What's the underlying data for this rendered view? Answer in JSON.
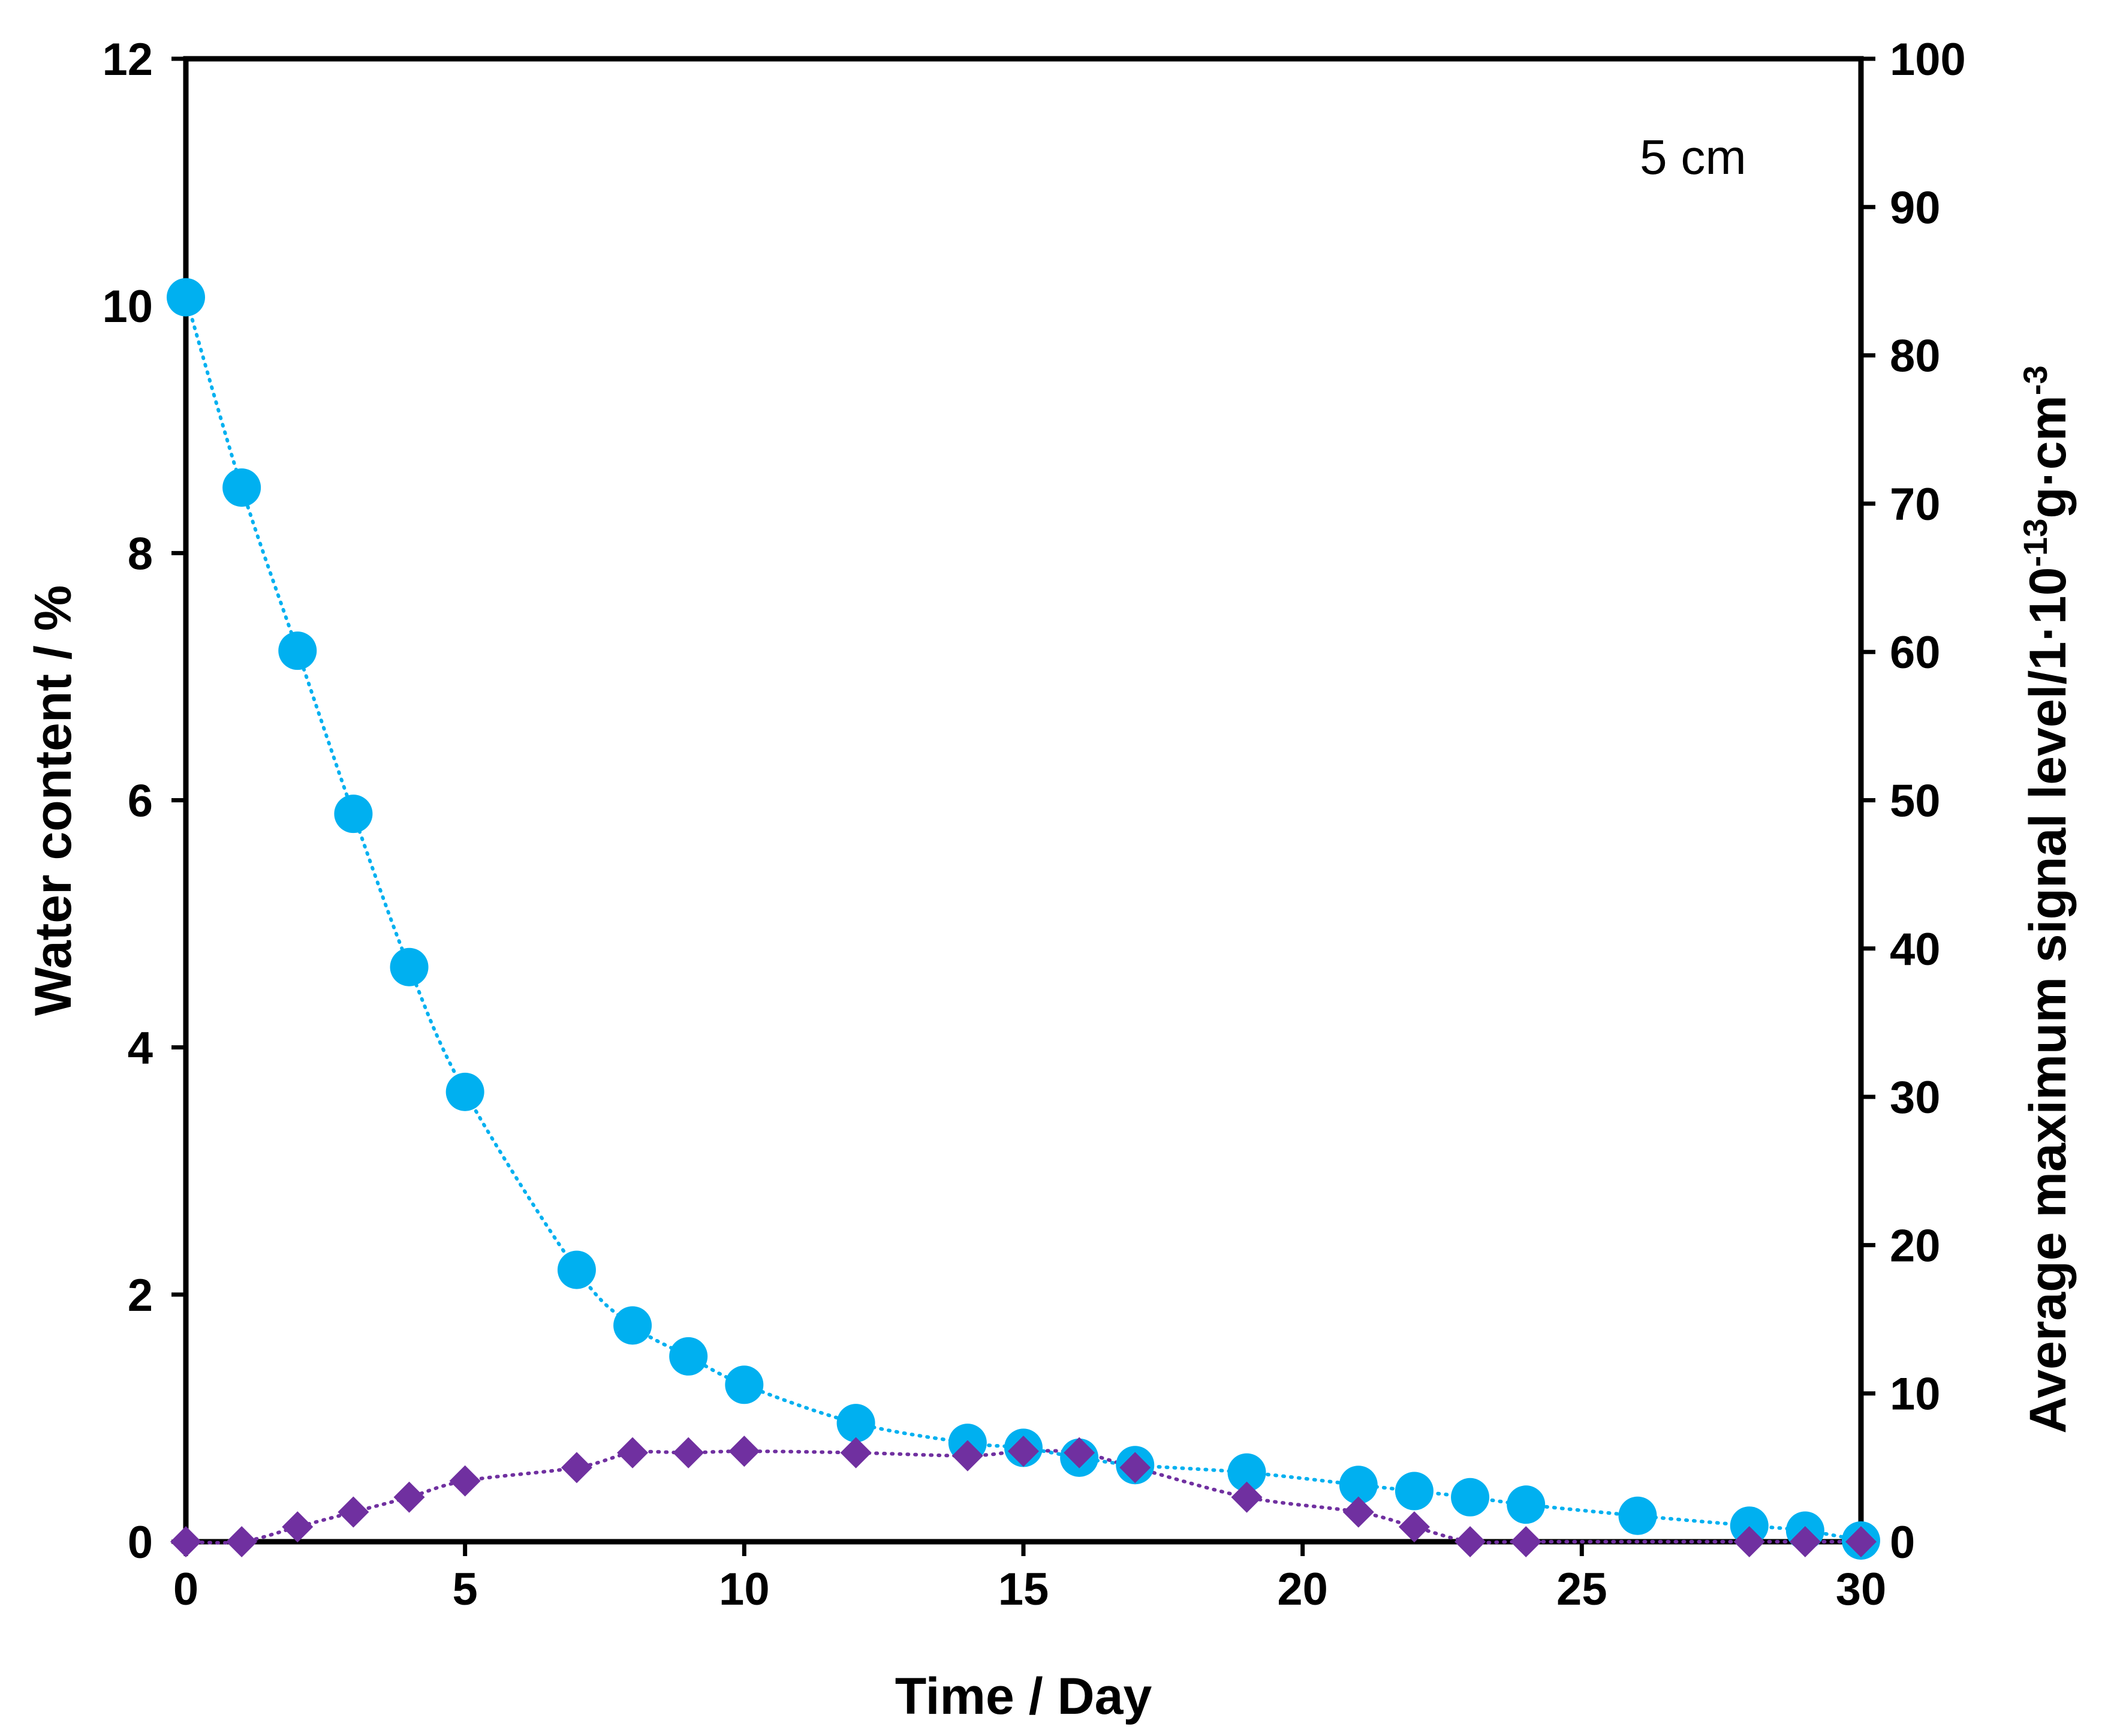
{
  "chart_data": {
    "type": "scatter",
    "annotation": "5 cm",
    "xlabel": "Time / Day",
    "ylabel": "Water content / %",
    "y2label": {
      "main": "Average maximum signal level/1·10",
      "exp": "-13",
      "unit": "g·cm",
      "unit_exp": "-3"
    },
    "xlim": [
      0,
      30
    ],
    "ylim": [
      0,
      12
    ],
    "y2lim": [
      0,
      100
    ],
    "xticks": [
      0,
      5,
      10,
      15,
      20,
      25,
      30
    ],
    "yticks": [
      0,
      2,
      4,
      6,
      8,
      10,
      12
    ],
    "y2ticks": [
      0,
      10,
      20,
      30,
      40,
      50,
      60,
      70,
      80,
      90,
      100
    ],
    "grid": false,
    "series": [
      {
        "name": "Water content",
        "axis": "left",
        "marker": "circle",
        "color": "#00B0F0",
        "trendline": "dotted",
        "x": [
          0,
          1,
          2,
          3,
          4,
          5,
          7,
          8,
          9,
          10,
          12,
          14,
          15,
          16,
          17,
          19,
          21,
          22,
          23,
          24,
          26,
          28,
          29,
          30
        ],
        "y": [
          10.07,
          8.53,
          7.21,
          5.89,
          4.65,
          3.64,
          2.2,
          1.75,
          1.5,
          1.27,
          0.96,
          0.8,
          0.76,
          0.68,
          0.62,
          0.56,
          0.46,
          0.41,
          0.36,
          0.3,
          0.21,
          0.13,
          0.09,
          0.01
        ]
      },
      {
        "name": "Average maximum signal level",
        "axis": "right",
        "marker": "diamond",
        "color": "#7030A0",
        "trendline": "dotted",
        "x": [
          0,
          1,
          2,
          3,
          4,
          5,
          7,
          8,
          9,
          10,
          12,
          14,
          15,
          16,
          17,
          19,
          21,
          22,
          23,
          24,
          28,
          29,
          30
        ],
        "y": [
          0,
          0,
          1,
          2,
          3,
          4.1,
          5,
          6,
          6,
          6.1,
          6,
          5.8,
          6.1,
          6,
          5,
          3,
          2,
          1,
          0,
          0,
          0,
          0,
          0
        ]
      }
    ]
  }
}
